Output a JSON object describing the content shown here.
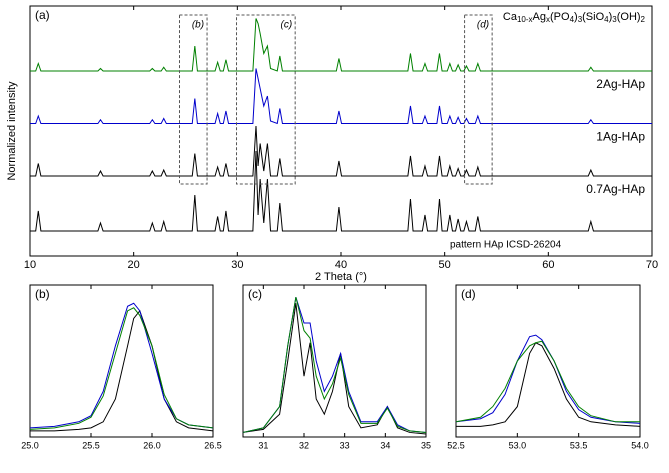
{
  "chart_data": [
    {
      "type": "line",
      "panel_label": "(a)",
      "xlabel": "2 Theta (°)",
      "ylabel": "Normalized intensity",
      "annotation": [
        "Ca",
        "10-x",
        "Ag",
        "x",
        "(PO",
        "4",
        ")",
        "3",
        "(SiO",
        "4",
        ")",
        "3",
        "(OH)",
        "2"
      ],
      "xlim": [
        10,
        70
      ],
      "xticks": [
        10,
        20,
        30,
        40,
        50,
        60,
        70
      ],
      "ylim": [
        0,
        10
      ],
      "x": [
        10,
        10.55,
        10.8,
        11.05,
        16.55,
        16.8,
        17.05,
        21.55,
        21.8,
        22.05,
        22.65,
        22.9,
        23.15,
        25.65,
        25.9,
        26.15,
        27.85,
        28.1,
        28.35,
        28.65,
        28.9,
        29.15,
        31.5,
        31.8,
        32.0,
        32.2,
        32.55,
        32.9,
        33.2,
        33.85,
        34.1,
        34.35,
        39.55,
        39.8,
        40.05,
        46.45,
        46.7,
        46.95,
        47.85,
        48.1,
        48.35,
        49.25,
        49.5,
        49.75,
        50.25,
        50.5,
        50.75,
        51.05,
        51.3,
        51.55,
        51.85,
        52.1,
        52.35,
        52.95,
        53.2,
        53.45,
        63.85,
        64.1,
        64.35,
        70
      ],
      "series": [
        {
          "name": "pattern HAp ICSD-26204",
          "color": "#000000",
          "values": [
            1,
            1,
            1.8,
            1,
            1,
            1.32,
            1,
            1,
            1.32,
            1,
            1,
            1.38,
            1,
            1,
            2.44,
            1,
            1,
            1.58,
            1,
            1,
            1.8,
            1,
            1,
            4.2,
            1.64,
            3.08,
            1.32,
            3.08,
            1,
            1,
            2.12,
            1,
            1,
            1.96,
            1,
            1,
            2.28,
            1,
            1,
            1.64,
            1,
            1,
            2.28,
            1,
            1,
            1.64,
            1,
            1,
            1.48,
            1,
            1,
            1.38,
            1,
            1,
            1.58,
            1,
            1,
            1.38,
            1,
            1
          ]
        },
        {
          "name": "0.7Ag-HAp",
          "color": "#000000",
          "values": [
            3.2,
            3.2,
            3.7,
            3.2,
            3.2,
            3.4,
            3.2,
            3.2,
            3.4,
            3.2,
            3.2,
            3.44,
            3.2,
            3.2,
            4.1,
            3.2,
            3.2,
            3.56,
            3.2,
            3.2,
            3.7,
            3.2,
            3.2,
            5.2,
            3.6,
            4.5,
            3.4,
            4.5,
            3.2,
            3.2,
            3.9,
            3.2,
            3.2,
            3.8,
            3.2,
            3.2,
            4.0,
            3.2,
            3.2,
            3.6,
            3.2,
            3.2,
            4.0,
            3.2,
            3.2,
            3.6,
            3.2,
            3.2,
            3.5,
            3.2,
            3.2,
            3.44,
            3.2,
            3.2,
            3.56,
            3.2,
            3.2,
            3.44,
            3.2,
            3.2
          ]
        },
        {
          "name": "1Ag-HAp",
          "color": "#0000cc",
          "values": [
            5.3,
            5.3,
            5.6,
            5.3,
            5.3,
            5.45,
            5.3,
            5.3,
            5.45,
            5.3,
            5.3,
            5.5,
            5.3,
            5.3,
            6.3,
            5.3,
            5.3,
            5.7,
            5.3,
            5.3,
            5.8,
            5.3,
            5.3,
            7.5,
            7.1,
            6.7,
            6.0,
            6.4,
            5.4,
            5.3,
            5.9,
            5.3,
            5.3,
            5.8,
            5.3,
            5.3,
            6.0,
            5.3,
            5.3,
            5.6,
            5.3,
            5.3,
            6.0,
            5.3,
            5.3,
            5.6,
            5.3,
            5.3,
            5.55,
            5.3,
            5.3,
            5.5,
            5.3,
            5.3,
            5.6,
            5.3,
            5.3,
            5.45,
            5.3,
            5.3
          ]
        },
        {
          "name": "2Ag-HAp",
          "color": "#008000",
          "values": [
            7.4,
            7.4,
            7.7,
            7.4,
            7.4,
            7.5,
            7.4,
            7.4,
            7.5,
            7.4,
            7.4,
            7.55,
            7.4,
            7.4,
            8.4,
            7.4,
            7.4,
            7.75,
            7.4,
            7.4,
            7.85,
            7.4,
            7.4,
            9.5,
            9.3,
            8.9,
            8.1,
            8.4,
            7.5,
            7.4,
            8.0,
            7.4,
            7.4,
            7.9,
            7.4,
            7.4,
            8.1,
            7.4,
            7.4,
            7.7,
            7.4,
            7.4,
            8.1,
            7.4,
            7.4,
            7.7,
            7.4,
            7.4,
            7.65,
            7.4,
            7.4,
            7.6,
            7.4,
            7.4,
            7.7,
            7.4,
            7.4,
            7.55,
            7.4,
            7.4
          ]
        }
      ]
    },
    {
      "type": "line",
      "panel_label": "(b)",
      "xlim": [
        25,
        26.5
      ],
      "ylim": [
        0,
        1
      ],
      "xticks": [
        {
          "value": 25,
          "label": "25.0"
        },
        25.5,
        {
          "value": 26,
          "label": "26.0"
        },
        26.5
      ],
      "x": [
        25.0,
        25.2,
        25.4,
        25.5,
        25.6,
        25.7,
        25.8,
        25.85,
        25.9,
        26.0,
        26.1,
        26.2,
        26.3,
        26.5
      ],
      "series": [
        {
          "color": "#000000",
          "values": [
            0.04,
            0.04,
            0.05,
            0.06,
            0.1,
            0.25,
            0.6,
            0.78,
            0.83,
            0.6,
            0.25,
            0.1,
            0.06,
            0.04
          ]
        },
        {
          "color": "#0000cc",
          "values": [
            0.06,
            0.07,
            0.1,
            0.14,
            0.3,
            0.6,
            0.86,
            0.88,
            0.83,
            0.55,
            0.25,
            0.12,
            0.08,
            0.06
          ]
        },
        {
          "color": "#008000",
          "values": [
            0.05,
            0.06,
            0.09,
            0.13,
            0.27,
            0.55,
            0.83,
            0.85,
            0.8,
            0.6,
            0.28,
            0.12,
            0.08,
            0.06
          ]
        }
      ]
    },
    {
      "type": "line",
      "panel_label": "(c)",
      "xlim": [
        30.5,
        35
      ],
      "ylim": [
        0,
        1
      ],
      "xticks": [
        31,
        32,
        33,
        34,
        35
      ],
      "x": [
        30.5,
        31.0,
        31.4,
        31.6,
        31.8,
        32.0,
        32.15,
        32.3,
        32.5,
        32.7,
        32.9,
        33.1,
        33.4,
        33.8,
        34.05,
        34.3,
        34.6,
        35
      ],
      "series": [
        {
          "color": "#000000",
          "values": [
            0.03,
            0.05,
            0.15,
            0.5,
            0.88,
            0.4,
            0.62,
            0.25,
            0.15,
            0.3,
            0.55,
            0.2,
            0.06,
            0.08,
            0.2,
            0.06,
            0.03,
            0.02
          ]
        },
        {
          "color": "#0000cc",
          "values": [
            0.03,
            0.06,
            0.2,
            0.6,
            0.92,
            0.75,
            0.75,
            0.5,
            0.3,
            0.4,
            0.55,
            0.3,
            0.1,
            0.1,
            0.2,
            0.08,
            0.04,
            0.03
          ]
        },
        {
          "color": "#008000",
          "values": [
            0.03,
            0.06,
            0.2,
            0.6,
            0.92,
            0.7,
            0.65,
            0.4,
            0.25,
            0.35,
            0.52,
            0.28,
            0.09,
            0.09,
            0.19,
            0.07,
            0.04,
            0.03
          ]
        }
      ]
    },
    {
      "type": "line",
      "panel_label": "(d)",
      "xlim": [
        52.5,
        54
      ],
      "ylim": [
        0,
        1
      ],
      "xticks": [
        52.5,
        {
          "value": 53,
          "label": "53.0"
        },
        53.5,
        {
          "value": 54,
          "label": "54.0"
        }
      ],
      "x": [
        52.5,
        52.7,
        52.8,
        52.9,
        53.0,
        53.1,
        53.15,
        53.2,
        53.3,
        53.4,
        53.5,
        53.6,
        53.8,
        54
      ],
      "series": [
        {
          "color": "#000000",
          "values": [
            0.07,
            0.07,
            0.08,
            0.1,
            0.2,
            0.55,
            0.62,
            0.6,
            0.45,
            0.25,
            0.13,
            0.1,
            0.08,
            0.07
          ]
        },
        {
          "color": "#0000cc",
          "values": [
            0.1,
            0.12,
            0.16,
            0.28,
            0.5,
            0.66,
            0.67,
            0.64,
            0.5,
            0.3,
            0.18,
            0.13,
            0.1,
            0.09
          ]
        },
        {
          "color": "#008000",
          "values": [
            0.1,
            0.13,
            0.2,
            0.32,
            0.5,
            0.6,
            0.62,
            0.63,
            0.5,
            0.32,
            0.2,
            0.14,
            0.1,
            0.1
          ]
        }
      ]
    }
  ]
}
